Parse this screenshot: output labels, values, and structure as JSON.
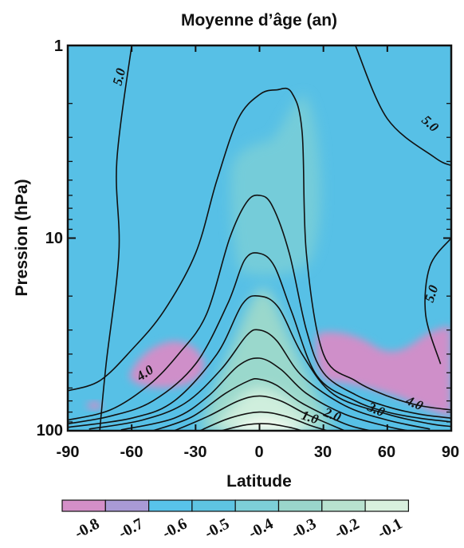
{
  "chart_data": {
    "type": "heatmap",
    "title": "Moyenne d’âge (an)",
    "xlabel": "Latitude",
    "ylabel": "Pression (hPa)",
    "xlim": [
      -90,
      90
    ],
    "ylim": [
      100,
      1
    ],
    "y_scale": "log",
    "x_ticks": [
      "-90",
      "-60",
      "-30",
      "0",
      "30",
      "60",
      "90"
    ],
    "y_ticks": [
      "1",
      "10",
      "100"
    ],
    "colorbar": {
      "labels": [
        "-0.8",
        "-0.7",
        "-0.6",
        "-0.5",
        "-0.4",
        "-0.3",
        "-0.2",
        "-0.1"
      ],
      "colors": [
        "#d48fc8",
        "#a99ad6",
        "#58c3ea",
        "#5ec4e2",
        "#7dcfd8",
        "#9ad6cb",
        "#b8e2cf",
        "#d9f0de"
      ]
    },
    "contour_labels": [
      "5.0",
      "5.0",
      "5.0",
      "4.0",
      "4.0",
      "3.0",
      "2.0",
      "1.0"
    ],
    "contours": [
      {
        "level": 5.0,
        "points": [
          [
            -75,
            100
          ],
          [
            -72,
            45
          ],
          [
            -66,
            12
          ],
          [
            -67,
            4
          ],
          [
            -60,
            1
          ]
        ]
      },
      {
        "level": 5.0,
        "points": [
          [
            45,
            1
          ],
          [
            60,
            2.4
          ],
          [
            82,
            3.8
          ],
          [
            90,
            4.2
          ]
        ]
      },
      {
        "level": 5.0,
        "points": [
          [
            85,
            45
          ],
          [
            78,
            25
          ],
          [
            80,
            14
          ],
          [
            90,
            10
          ]
        ]
      },
      {
        "level": 4.5,
        "points": [
          [
            -90,
            62
          ],
          [
            -75,
            55
          ],
          [
            -60,
            38
          ],
          [
            -45,
            24
          ],
          [
            -30,
            12
          ],
          [
            -20,
            5
          ],
          [
            -10,
            2.4
          ],
          [
            0,
            1.8
          ],
          [
            8,
            1.7
          ],
          [
            15,
            1.75
          ],
          [
            20,
            2.8
          ],
          [
            22,
            12
          ],
          [
            30,
            40
          ],
          [
            45,
            55
          ],
          [
            60,
            66
          ],
          [
            75,
            74
          ],
          [
            90,
            78
          ]
        ]
      },
      {
        "level": 4.0,
        "points": [
          [
            -90,
            88
          ],
          [
            -70,
            78
          ],
          [
            -52,
            58
          ],
          [
            -38,
            40
          ],
          [
            -25,
            25
          ],
          [
            -14,
            10
          ],
          [
            -6,
            6.5
          ],
          [
            0,
            6
          ],
          [
            6,
            6.8
          ],
          [
            14,
            12
          ],
          [
            22,
            30
          ],
          [
            30,
            50
          ],
          [
            45,
            65
          ],
          [
            60,
            75
          ],
          [
            75,
            82
          ],
          [
            90,
            86
          ]
        ]
      },
      {
        "level": 3.5,
        "points": [
          [
            -90,
            92
          ],
          [
            -70,
            84
          ],
          [
            -50,
            70
          ],
          [
            -30,
            45
          ],
          [
            -15,
            22
          ],
          [
            -7,
            13
          ],
          [
            0,
            12
          ],
          [
            7,
            14
          ],
          [
            15,
            24
          ],
          [
            27,
            52
          ],
          [
            45,
            70
          ],
          [
            60,
            80
          ],
          [
            75,
            86
          ],
          [
            90,
            90
          ]
        ]
      },
      {
        "level": 3.0,
        "points": [
          [
            -90,
            96
          ],
          [
            -60,
            86
          ],
          [
            -40,
            70
          ],
          [
            -20,
            40
          ],
          [
            -8,
            22
          ],
          [
            0,
            20
          ],
          [
            9,
            23
          ],
          [
            20,
            40
          ],
          [
            35,
            65
          ],
          [
            60,
            82
          ],
          [
            80,
            92
          ],
          [
            90,
            95
          ]
        ]
      },
      {
        "level": 2.5,
        "points": [
          [
            -80,
            98
          ],
          [
            -55,
            88
          ],
          [
            -35,
            72
          ],
          [
            -18,
            48
          ],
          [
            -6,
            32
          ],
          [
            0,
            30
          ],
          [
            8,
            34
          ],
          [
            20,
            52
          ],
          [
            40,
            74
          ],
          [
            60,
            88
          ],
          [
            80,
            98
          ]
        ]
      },
      {
        "level": 2.0,
        "points": [
          [
            -65,
            99
          ],
          [
            -40,
            86
          ],
          [
            -24,
            66
          ],
          [
            -10,
            46
          ],
          [
            0,
            42
          ],
          [
            10,
            48
          ],
          [
            22,
            64
          ],
          [
            40,
            82
          ],
          [
            60,
            95
          ],
          [
            70,
            100
          ]
        ]
      },
      {
        "level": 1.75,
        "points": [
          [
            -50,
            100
          ],
          [
            -32,
            85
          ],
          [
            -16,
            64
          ],
          [
            -5,
            55
          ],
          [
            0,
            54
          ],
          [
            8,
            58
          ],
          [
            20,
            72
          ],
          [
            40,
            92
          ],
          [
            52,
            100
          ]
        ]
      },
      {
        "level": 1.5,
        "points": [
          [
            -40,
            100
          ],
          [
            -24,
            84
          ],
          [
            -10,
            70
          ],
          [
            0,
            66
          ],
          [
            10,
            70
          ],
          [
            22,
            82
          ],
          [
            40,
            100
          ]
        ]
      },
      {
        "level": 1.0,
        "points": [
          [
            -28,
            100
          ],
          [
            -14,
            86
          ],
          [
            0,
            80
          ],
          [
            12,
            84
          ],
          [
            24,
            94
          ],
          [
            32,
            100
          ]
        ]
      },
      {
        "level": 0.5,
        "points": [
          [
            -18,
            100
          ],
          [
            -6,
            93
          ],
          [
            4,
            92
          ],
          [
            14,
            96
          ],
          [
            20,
            100
          ]
        ]
      }
    ]
  }
}
